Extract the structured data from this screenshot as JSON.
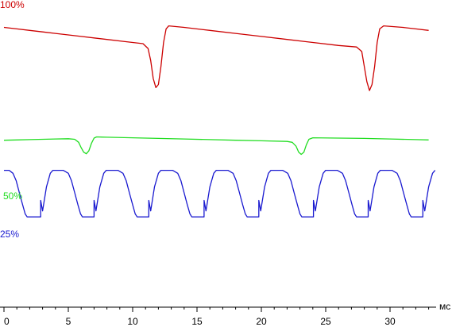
{
  "chart_data": {
    "type": "line",
    "x_unit": "мс",
    "xlim": [
      0,
      33.5
    ],
    "xticks": [
      0,
      5,
      10,
      15,
      20,
      25,
      30
    ],
    "xtick_labels": [
      "0",
      "5",
      "10",
      "15",
      "20",
      "25",
      "30"
    ],
    "grid": false,
    "series": [
      {
        "name": "100%",
        "color": "#cc0000",
        "points": [
          [
            0.0,
            0.93
          ],
          [
            1.0,
            0.925
          ],
          [
            2.0,
            0.92
          ],
          [
            3.0,
            0.915
          ],
          [
            4.0,
            0.91
          ],
          [
            5.0,
            0.905
          ],
          [
            6.0,
            0.9
          ],
          [
            7.0,
            0.895
          ],
          [
            8.0,
            0.89
          ],
          [
            9.0,
            0.885
          ],
          [
            10.0,
            0.88
          ],
          [
            10.8,
            0.876
          ],
          [
            11.2,
            0.86
          ],
          [
            11.4,
            0.82
          ],
          [
            11.6,
            0.76
          ],
          [
            11.8,
            0.73
          ],
          [
            12.0,
            0.74
          ],
          [
            12.2,
            0.8
          ],
          [
            12.4,
            0.88
          ],
          [
            12.6,
            0.925
          ],
          [
            12.8,
            0.935
          ],
          [
            14.0,
            0.93
          ],
          [
            16.0,
            0.92
          ],
          [
            18.0,
            0.91
          ],
          [
            20.0,
            0.9
          ],
          [
            22.0,
            0.89
          ],
          [
            24.0,
            0.88
          ],
          [
            26.0,
            0.87
          ],
          [
            27.4,
            0.865
          ],
          [
            27.8,
            0.85
          ],
          [
            28.0,
            0.8
          ],
          [
            28.2,
            0.75
          ],
          [
            28.4,
            0.72
          ],
          [
            28.6,
            0.74
          ],
          [
            28.8,
            0.8
          ],
          [
            29.0,
            0.88
          ],
          [
            29.2,
            0.925
          ],
          [
            29.5,
            0.935
          ],
          [
            31.0,
            0.93
          ],
          [
            32.0,
            0.925
          ],
          [
            33.0,
            0.92
          ]
        ]
      },
      {
        "name": "50%",
        "color": "#22dd22",
        "points": [
          [
            0.0,
            0.555
          ],
          [
            1.0,
            0.556
          ],
          [
            2.0,
            0.557
          ],
          [
            3.0,
            0.558
          ],
          [
            4.0,
            0.559
          ],
          [
            5.0,
            0.56
          ],
          [
            5.5,
            0.558
          ],
          [
            5.8,
            0.548
          ],
          [
            6.0,
            0.53
          ],
          [
            6.2,
            0.515
          ],
          [
            6.4,
            0.51
          ],
          [
            6.6,
            0.52
          ],
          [
            6.8,
            0.545
          ],
          [
            7.0,
            0.562
          ],
          [
            7.2,
            0.566
          ],
          [
            8.0,
            0.565
          ],
          [
            10.0,
            0.563
          ],
          [
            12.0,
            0.561
          ],
          [
            14.0,
            0.559
          ],
          [
            16.0,
            0.557
          ],
          [
            18.0,
            0.555
          ],
          [
            20.0,
            0.553
          ],
          [
            22.0,
            0.551
          ],
          [
            22.4,
            0.548
          ],
          [
            22.7,
            0.535
          ],
          [
            22.9,
            0.515
          ],
          [
            23.1,
            0.508
          ],
          [
            23.3,
            0.515
          ],
          [
            23.5,
            0.54
          ],
          [
            23.7,
            0.558
          ],
          [
            24.0,
            0.563
          ],
          [
            26.0,
            0.562
          ],
          [
            28.0,
            0.561
          ],
          [
            30.0,
            0.559
          ],
          [
            32.0,
            0.557
          ],
          [
            33.0,
            0.556
          ]
        ]
      },
      {
        "name": "25%",
        "color": "#1a1ad0",
        "points": [
          [
            0.0,
            0.455
          ],
          [
            0.4,
            0.455
          ],
          [
            0.7,
            0.445
          ],
          [
            0.95,
            0.42
          ],
          [
            1.2,
            0.38
          ],
          [
            1.45,
            0.34
          ],
          [
            1.65,
            0.31
          ],
          [
            1.8,
            0.3
          ],
          [
            2.85,
            0.3
          ],
          [
            2.85,
            0.355
          ],
          [
            3.0,
            0.32
          ],
          [
            3.3,
            0.4
          ],
          [
            3.6,
            0.445
          ],
          [
            3.8,
            0.455
          ],
          [
            4.6,
            0.455
          ],
          [
            5.0,
            0.445
          ],
          [
            5.25,
            0.42
          ],
          [
            5.5,
            0.38
          ],
          [
            5.75,
            0.34
          ],
          [
            5.95,
            0.31
          ],
          [
            6.1,
            0.3
          ],
          [
            7.0,
            0.3
          ],
          [
            7.0,
            0.355
          ],
          [
            7.15,
            0.32
          ],
          [
            7.45,
            0.4
          ],
          [
            7.75,
            0.445
          ],
          [
            7.95,
            0.455
          ],
          [
            8.85,
            0.455
          ],
          [
            9.25,
            0.445
          ],
          [
            9.5,
            0.42
          ],
          [
            9.75,
            0.38
          ],
          [
            10.0,
            0.34
          ],
          [
            10.2,
            0.31
          ],
          [
            10.35,
            0.3
          ],
          [
            11.25,
            0.3
          ],
          [
            11.25,
            0.355
          ],
          [
            11.4,
            0.32
          ],
          [
            11.7,
            0.4
          ],
          [
            12.0,
            0.445
          ],
          [
            12.2,
            0.455
          ],
          [
            13.1,
            0.455
          ],
          [
            13.5,
            0.445
          ],
          [
            13.75,
            0.42
          ],
          [
            14.0,
            0.38
          ],
          [
            14.25,
            0.34
          ],
          [
            14.45,
            0.31
          ],
          [
            14.6,
            0.3
          ],
          [
            15.55,
            0.3
          ],
          [
            15.55,
            0.355
          ],
          [
            15.7,
            0.32
          ],
          [
            16.0,
            0.4
          ],
          [
            16.3,
            0.445
          ],
          [
            16.5,
            0.455
          ],
          [
            17.4,
            0.455
          ],
          [
            17.8,
            0.445
          ],
          [
            18.05,
            0.42
          ],
          [
            18.3,
            0.38
          ],
          [
            18.55,
            0.34
          ],
          [
            18.75,
            0.31
          ],
          [
            18.9,
            0.3
          ],
          [
            19.8,
            0.3
          ],
          [
            19.8,
            0.355
          ],
          [
            19.95,
            0.32
          ],
          [
            20.25,
            0.4
          ],
          [
            20.55,
            0.445
          ],
          [
            20.75,
            0.455
          ],
          [
            21.65,
            0.455
          ],
          [
            22.05,
            0.445
          ],
          [
            22.3,
            0.42
          ],
          [
            22.55,
            0.38
          ],
          [
            22.8,
            0.34
          ],
          [
            23.0,
            0.31
          ],
          [
            23.15,
            0.3
          ],
          [
            24.05,
            0.3
          ],
          [
            24.05,
            0.355
          ],
          [
            24.2,
            0.32
          ],
          [
            24.5,
            0.4
          ],
          [
            24.8,
            0.445
          ],
          [
            25.0,
            0.455
          ],
          [
            25.9,
            0.455
          ],
          [
            26.3,
            0.445
          ],
          [
            26.55,
            0.42
          ],
          [
            26.8,
            0.38
          ],
          [
            27.05,
            0.34
          ],
          [
            27.25,
            0.31
          ],
          [
            27.4,
            0.3
          ],
          [
            28.3,
            0.3
          ],
          [
            28.3,
            0.355
          ],
          [
            28.45,
            0.32
          ],
          [
            28.75,
            0.4
          ],
          [
            29.05,
            0.445
          ],
          [
            29.25,
            0.455
          ],
          [
            30.15,
            0.455
          ],
          [
            30.55,
            0.445
          ],
          [
            30.8,
            0.42
          ],
          [
            31.05,
            0.38
          ],
          [
            31.3,
            0.34
          ],
          [
            31.5,
            0.31
          ],
          [
            31.65,
            0.3
          ],
          [
            32.55,
            0.3
          ],
          [
            32.55,
            0.355
          ],
          [
            32.7,
            0.32
          ],
          [
            33.0,
            0.4
          ],
          [
            33.3,
            0.445
          ],
          [
            33.5,
            0.455
          ]
        ]
      }
    ]
  }
}
